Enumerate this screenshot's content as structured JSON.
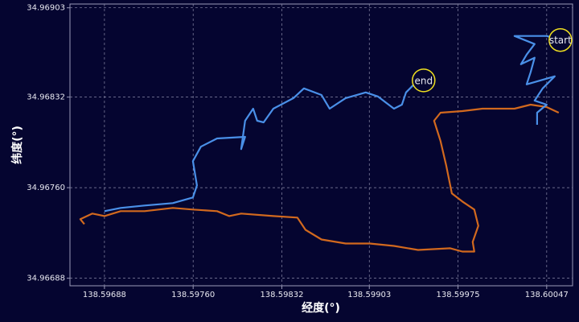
{
  "chart_data": {
    "type": "line",
    "xlabel": "经度(°)",
    "ylabel": "纬度(°)",
    "xlim": [
      138.5966,
      138.60068
    ],
    "ylim": [
      34.96682,
      34.96906
    ],
    "xticks": [
      138.59688,
      {
        "value": 138.5976,
        "label": "138.59760"
      },
      138.59832,
      138.59903,
      138.59975,
      138.60047
    ],
    "yticks": [
      34.96688,
      {
        "value": 34.9676,
        "label": "34.96760"
      },
      34.96832,
      34.96903
    ],
    "grid": true,
    "series": [
      {
        "color": "#d2691e",
        "x": [
          138.600568,
          138.60047,
          138.600339,
          138.600209,
          138.599948,
          138.599785,
          138.599608,
          138.599556,
          138.599608,
          138.599654,
          138.5997,
          138.599785,
          138.599882,
          138.599915,
          138.599869,
          138.599882,
          138.599785,
          138.599687,
          138.599426,
          138.59923,
          138.599034,
          138.598838,
          138.598642,
          138.598512,
          138.598446,
          138.598251,
          138.59799,
          138.597892,
          138.597794,
          138.597598,
          138.597435,
          138.597206,
          138.597011,
          138.59688,
          138.596782,
          138.596684,
          138.596717
        ],
        "y": [
          34.968196,
          34.968241,
          34.96826,
          34.968228,
          34.968228,
          34.968209,
          34.968196,
          34.968132,
          34.967971,
          34.967779,
          34.967554,
          34.96749,
          34.967426,
          34.967297,
          34.967169,
          34.967092,
          34.967092,
          34.967118,
          34.967105,
          34.967137,
          34.967156,
          34.967156,
          34.967188,
          34.967265,
          34.967362,
          34.967374,
          34.967394,
          34.967374,
          34.967413,
          34.967426,
          34.967439,
          34.967413,
          34.967413,
          34.967374,
          34.967394,
          34.967349,
          34.96731
        ]
      },
      {
        "color": "#4a90e8",
        "x": [
          138.600581,
          138.60047,
          138.600339,
          138.600209,
          138.600372,
          138.600307,
          138.600261,
          138.600372,
          138.600339,
          138.600307,
          138.600535,
          138.600437,
          138.600372,
          138.60047,
          138.600392,
          138.600392,
          null,
          138.59688,
          138.597011,
          138.597206,
          138.597435,
          138.597598,
          138.597631,
          138.597598,
          138.597663,
          138.597794,
          138.598022,
          138.59799,
          138.598022,
          138.598087,
          138.59812,
          138.598172,
          138.598251,
          138.598414,
          138.598499,
          138.598642,
          138.598708,
          138.598838,
          138.599001,
          138.599099,
          138.59923,
          138.599295,
          138.599328,
          138.599393
        ],
        "y": [
          34.968774,
          34.968806,
          34.968806,
          34.968806,
          34.968742,
          34.968658,
          34.968581,
          34.968633,
          34.968517,
          34.968421,
          34.968485,
          34.968389,
          34.968292,
          34.96826,
          34.968196,
          34.9681,
          null,
          34.967413,
          34.967439,
          34.967458,
          34.967477,
          34.967522,
          34.967618,
          34.967811,
          34.967926,
          34.967991,
          34.968004,
          34.967907,
          34.968132,
          34.968228,
          34.968132,
          34.968119,
          34.968228,
          34.968312,
          34.968389,
          34.968337,
          34.968228,
          34.968312,
          34.968357,
          34.968325,
          34.968228,
          34.96826,
          34.968357,
          34.968421
        ]
      }
    ],
    "annotations": [
      {
        "text": "start",
        "x": 138.600581,
        "y": 34.968774
      },
      {
        "text": "end",
        "x": 138.599471,
        "y": 34.968453
      }
    ]
  }
}
